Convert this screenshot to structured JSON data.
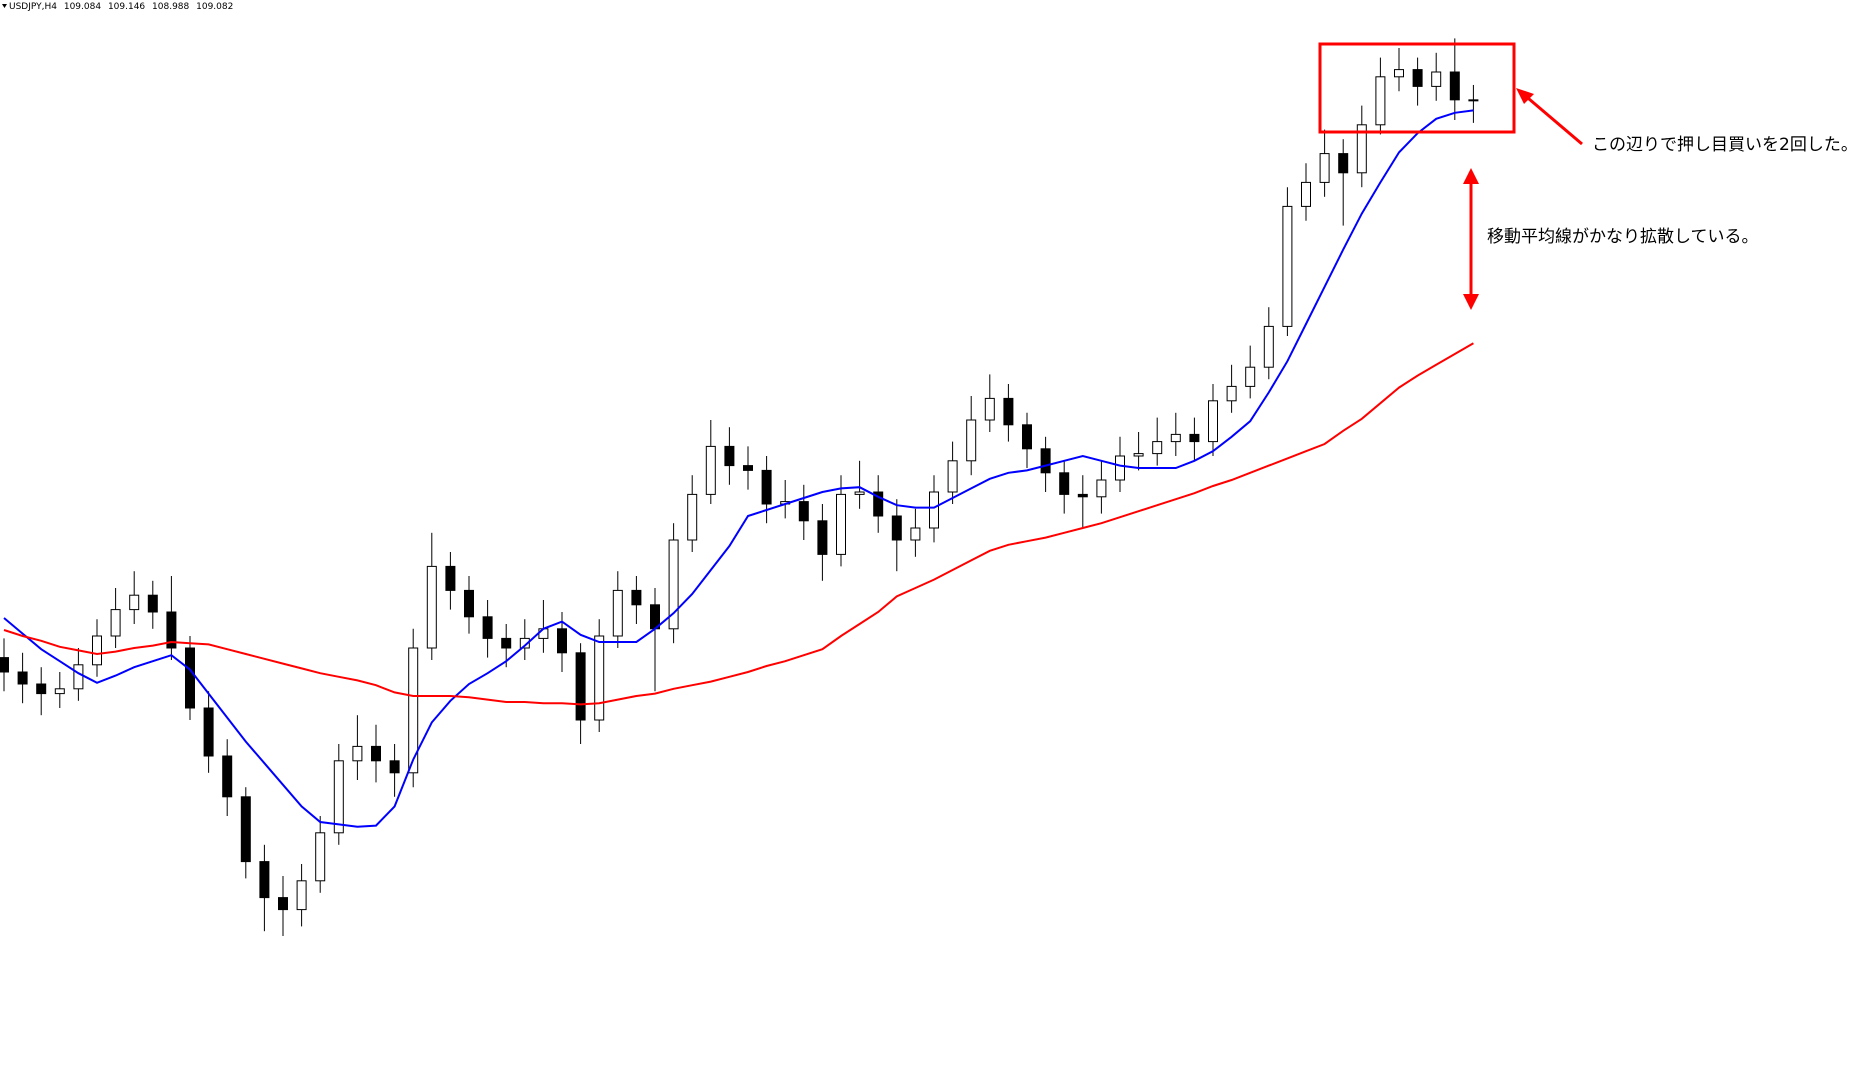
{
  "chart_data": {
    "type": "candlestick",
    "symbol": "USDJPY,H4",
    "ylim": [
      105.0,
      109.5
    ],
    "up_color": "#ffffff",
    "down_color": "#000000",
    "open": [
      106.76,
      106.7,
      106.65,
      106.61,
      106.63,
      106.73,
      106.85,
      106.96,
      107.02,
      106.95,
      106.8,
      106.55,
      106.35,
      106.18,
      105.91,
      105.76,
      105.71,
      105.83,
      106.03,
      106.33,
      106.39,
      106.33,
      106.28,
      106.8,
      107.14,
      107.04,
      106.93,
      106.84,
      106.8,
      106.84,
      106.88,
      106.78,
      106.5,
      106.85,
      107.04,
      106.98,
      106.88,
      107.25,
      107.44,
      107.64,
      107.56,
      107.54,
      107.4,
      107.41,
      107.33,
      107.19,
      107.44,
      107.45,
      107.35,
      107.25,
      107.3,
      107.45,
      107.58,
      107.75,
      107.84,
      107.73,
      107.63,
      107.53,
      107.44,
      107.43,
      107.5,
      107.6,
      107.61,
      107.66,
      107.69,
      107.66,
      107.83,
      107.89,
      107.97,
      108.14,
      108.64,
      108.74,
      108.86,
      108.78,
      108.98,
      109.18,
      109.21,
      109.14,
      109.2,
      109.084
    ],
    "high": [
      106.84,
      106.78,
      106.72,
      106.7,
      106.8,
      106.92,
      107.05,
      107.12,
      107.08,
      107.1,
      106.85,
      106.62,
      106.42,
      106.22,
      105.98,
      105.85,
      105.9,
      106.1,
      106.4,
      106.52,
      106.48,
      106.4,
      106.88,
      107.28,
      107.2,
      107.1,
      107.0,
      106.9,
      106.92,
      107.0,
      106.95,
      106.82,
      106.92,
      107.12,
      107.1,
      107.05,
      107.32,
      107.52,
      107.75,
      107.72,
      107.64,
      107.6,
      107.5,
      107.48,
      107.4,
      107.52,
      107.58,
      107.52,
      107.42,
      107.38,
      107.52,
      107.66,
      107.85,
      107.94,
      107.9,
      107.78,
      107.68,
      107.58,
      107.52,
      107.58,
      107.68,
      107.7,
      107.76,
      107.78,
      107.76,
      107.9,
      107.98,
      108.06,
      108.22,
      108.72,
      108.82,
      108.96,
      108.92,
      109.06,
      109.26,
      109.3,
      109.26,
      109.28,
      109.34,
      109.146
    ],
    "low": [
      106.62,
      106.57,
      106.52,
      106.55,
      106.58,
      106.68,
      106.8,
      106.9,
      106.88,
      106.75,
      106.5,
      106.28,
      106.1,
      105.84,
      105.62,
      105.6,
      105.64,
      105.78,
      105.98,
      106.25,
      106.24,
      106.18,
      106.22,
      106.75,
      106.96,
      106.86,
      106.76,
      106.72,
      106.75,
      106.78,
      106.7,
      106.4,
      106.45,
      106.8,
      106.9,
      106.62,
      106.82,
      107.2,
      107.4,
      107.48,
      107.46,
      107.32,
      107.34,
      107.25,
      107.08,
      107.14,
      107.38,
      107.28,
      107.12,
      107.18,
      107.24,
      107.4,
      107.52,
      107.7,
      107.66,
      107.55,
      107.45,
      107.36,
      107.3,
      107.36,
      107.45,
      107.54,
      107.56,
      107.6,
      107.58,
      107.6,
      107.78,
      107.84,
      107.92,
      108.1,
      108.58,
      108.68,
      108.56,
      108.72,
      108.94,
      109.12,
      109.06,
      109.08,
      109.0,
      108.988
    ],
    "close": [
      106.7,
      106.65,
      106.61,
      106.63,
      106.73,
      106.85,
      106.96,
      107.02,
      106.95,
      106.8,
      106.55,
      106.35,
      106.18,
      105.91,
      105.76,
      105.71,
      105.83,
      106.03,
      106.33,
      106.39,
      106.33,
      106.28,
      106.8,
      107.14,
      107.04,
      106.93,
      106.84,
      106.8,
      106.84,
      106.88,
      106.78,
      106.5,
      106.85,
      107.04,
      106.98,
      106.88,
      107.25,
      107.44,
      107.64,
      107.56,
      107.54,
      107.4,
      107.41,
      107.33,
      107.19,
      107.44,
      107.45,
      107.35,
      107.25,
      107.3,
      107.45,
      107.58,
      107.75,
      107.84,
      107.73,
      107.63,
      107.53,
      107.44,
      107.43,
      107.5,
      107.6,
      107.61,
      107.66,
      107.69,
      107.66,
      107.83,
      107.89,
      107.97,
      108.14,
      108.64,
      108.74,
      108.86,
      108.78,
      108.98,
      109.18,
      109.21,
      109.14,
      109.2,
      109.084,
      109.082
    ],
    "moving_averages": [
      {
        "color": "#0000ff",
        "values": [
          106.925,
          106.86,
          106.795,
          106.745,
          106.695,
          106.655,
          106.685,
          106.72,
          106.745,
          106.77,
          106.71,
          106.61,
          106.51,
          106.41,
          106.32,
          106.23,
          106.14,
          106.075,
          106.065,
          106.055,
          106.06,
          106.14,
          106.335,
          106.49,
          106.58,
          106.65,
          106.695,
          106.745,
          106.81,
          106.88,
          106.91,
          106.855,
          106.825,
          106.825,
          106.825,
          106.88,
          106.945,
          107.025,
          107.125,
          107.225,
          107.35,
          107.375,
          107.4,
          107.425,
          107.45,
          107.465,
          107.47,
          107.43,
          107.395,
          107.385,
          107.385,
          107.425,
          107.465,
          107.505,
          107.53,
          107.54,
          107.56,
          107.58,
          107.6,
          107.58,
          107.56,
          107.55,
          107.55,
          107.55,
          107.58,
          107.62,
          107.68,
          107.745,
          107.865,
          107.995,
          108.15,
          108.305,
          108.46,
          108.61,
          108.74,
          108.865,
          108.945,
          109.005,
          109.03,
          109.04
        ]
      },
      {
        "color": "#ff0000",
        "values": [
          106.875,
          106.85,
          106.83,
          106.805,
          106.79,
          106.775,
          106.785,
          106.8,
          106.81,
          106.825,
          106.82,
          106.815,
          106.795,
          106.775,
          106.755,
          106.735,
          106.715,
          106.695,
          106.68,
          106.665,
          106.645,
          106.615,
          106.6,
          106.6,
          106.6,
          106.595,
          106.585,
          106.575,
          106.575,
          106.57,
          106.57,
          106.565,
          106.57,
          106.585,
          106.6,
          106.61,
          106.63,
          106.645,
          106.66,
          106.68,
          106.7,
          106.725,
          106.745,
          106.77,
          106.795,
          106.85,
          106.9,
          106.95,
          107.015,
          107.05,
          107.085,
          107.125,
          107.165,
          107.205,
          107.23,
          107.245,
          107.26,
          107.28,
          107.3,
          107.32,
          107.345,
          107.37,
          107.395,
          107.42,
          107.445,
          107.475,
          107.5,
          107.53,
          107.56,
          107.59,
          107.62,
          107.65,
          107.705,
          107.755,
          107.82,
          107.885,
          107.935,
          107.98,
          108.025,
          108.07
        ]
      }
    ],
    "annotations": [
      "この辺りで押し目買いを2回した。",
      "移動平均線がかなり拡散している。"
    ]
  }
}
